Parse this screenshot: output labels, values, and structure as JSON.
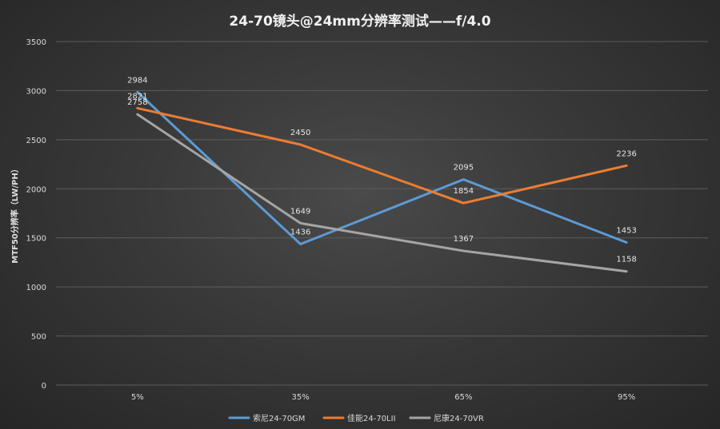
{
  "chart_data": {
    "type": "line",
    "title": "24-70镜头@24mm分辨率测试——f/4.0",
    "xlabel": "",
    "ylabel": "MTF50分辨率（LW/PH）",
    "categories": [
      "5%",
      "35%",
      "65%",
      "95%"
    ],
    "ylim": [
      0,
      3500
    ],
    "yticks": [
      0,
      500,
      1000,
      1500,
      2000,
      2500,
      3000,
      3500
    ],
    "grid": true,
    "legend_position": "bottom",
    "series": [
      {
        "name": "索尼24-70GM",
        "color": "#5b9bd5",
        "values": [
          2984,
          1436,
          2095,
          1453
        ]
      },
      {
        "name": "佳能24-70LII",
        "color": "#ed7d31",
        "values": [
          2821,
          2450,
          1854,
          2236
        ]
      },
      {
        "name": "尼康24-70VR",
        "color": "#a5a5a5",
        "values": [
          2758,
          1649,
          1367,
          1158
        ]
      }
    ]
  }
}
